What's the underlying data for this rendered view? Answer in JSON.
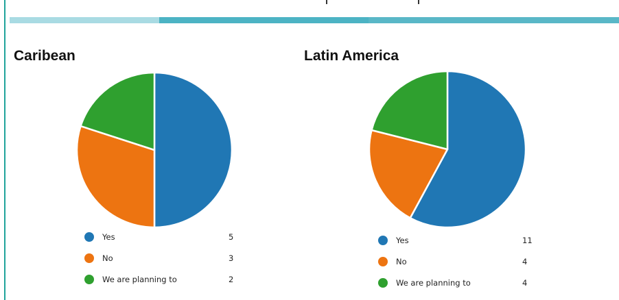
{
  "chart_data": [
    {
      "type": "pie",
      "title": "Caribean",
      "categories": [
        "Yes",
        "No",
        "We are planning to"
      ],
      "values": [
        5,
        3,
        2
      ],
      "colors": [
        "#2077b4",
        "#ed7411",
        "#2fa02f"
      ],
      "legend_position": "bottom"
    },
    {
      "type": "pie",
      "title": "Latin America",
      "categories": [
        "Yes",
        "No",
        "We are planning to"
      ],
      "values": [
        11,
        4,
        4
      ],
      "colors": [
        "#2077b4",
        "#ed7411",
        "#2fa02f"
      ],
      "legend_position": "bottom"
    }
  ],
  "theme": {
    "frame_color": "#1fa39a",
    "band_colors": [
      "#a9dbe3",
      "#4cb3c4",
      "#59b7c7"
    ]
  }
}
